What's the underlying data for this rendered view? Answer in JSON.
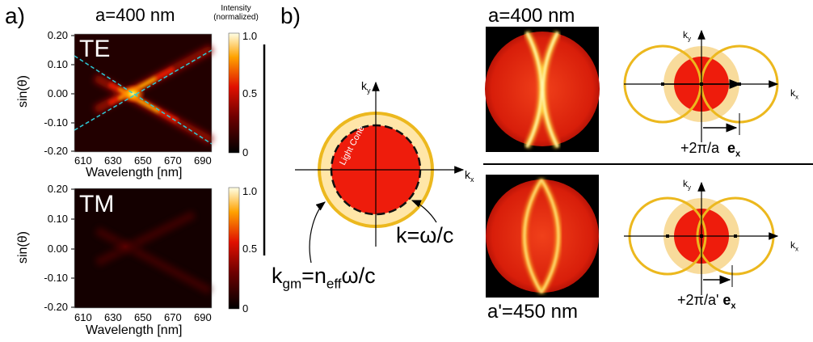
{
  "panel_a": {
    "letter": "a)",
    "title": "a=400 nm",
    "colorbar_title_line1": "Intensity",
    "colorbar_title_line2": "(normalized)",
    "colorbar_ticks": [
      "1.0",
      "0.5",
      "0"
    ],
    "plot_te": {
      "label": "TE",
      "y_axis_label": "sin(θ)",
      "y_ticks": [
        "0.20",
        "0.10",
        "0.00",
        "-0.10",
        "-0.20"
      ],
      "x_ticks": [
        "610",
        "630",
        "650",
        "670",
        "690"
      ],
      "x_axis_label": "Wavelength [nm]"
    },
    "plot_tm": {
      "label": "TM",
      "y_axis_label": "sin(θ)",
      "y_ticks": [
        "0.20",
        "0.10",
        "0.00",
        "-0.10",
        "-0.20"
      ],
      "x_ticks": [
        "610",
        "630",
        "650",
        "670",
        "690"
      ],
      "x_axis_label": "Wavelength [nm]"
    }
  },
  "panel_b": {
    "letter": "b)",
    "ky_label": "k",
    "ky_sub": "y",
    "kx_label": "k",
    "kx_sub": "x",
    "light_cone_label": "Light Cone",
    "k_omega_label": "k=ω/c",
    "kgm_k": "k",
    "kgm_sub": "gm",
    "kgm_eq": "=n",
    "kgm_eff": "eff",
    "kgm_rest": "ω/c",
    "top_lattice_label": "a=400 nm",
    "bottom_lattice_label": "a'=450 nm",
    "top_shift_label": "+2π/a",
    "bottom_shift_label": "+2π/a'",
    "unit_vector_e": "e",
    "unit_vector_sub": "x"
  },
  "colors": {
    "bloch_red": "#ee1c0c",
    "light_cone_fill": "#f7d58a",
    "ring_gold": "#ecb81e",
    "dashed_line": "#2ec9d6"
  }
}
